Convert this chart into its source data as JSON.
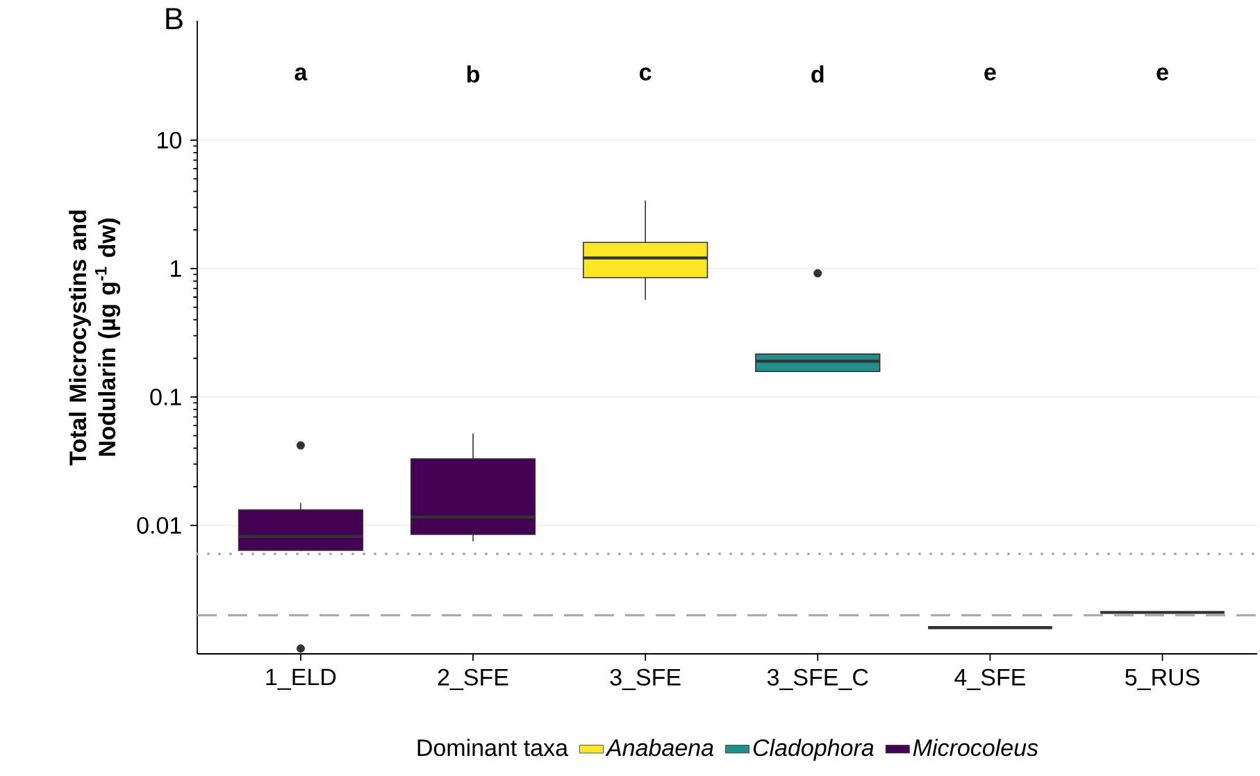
{
  "chart_data": {
    "type": "box",
    "ylabel": "Total Microcystins and Nodularin (µg g$^{-1}$ dw)",
    "legend_title": "Dominant taxa",
    "categories": [
      "1_ELD",
      "2_SFE",
      "3_SFE",
      "3_SFE_C",
      "4_SFE",
      "5_RUS"
    ],
    "log": "y",
    "ylim": [
      0.001,
      85
    ],
    "yticks": [
      0.01,
      0.1,
      1,
      10
    ],
    "grid": "y",
    "legend": "bottom",
    "series": [
      {
        "name": "Anabaena",
        "color": "#fde725",
        "boxes": [
          null,
          null,
          {
            "low": 0.57,
            "q1": 0.85,
            "median": 1.21,
            "q3": 1.6,
            "high": 3.4
          },
          null,
          null,
          null
        ]
      },
      {
        "name": "Cladophora",
        "color": "#21908c",
        "boxes": [
          null,
          null,
          null,
          {
            "low": 0.158,
            "q1": 0.158,
            "median": 0.19,
            "q3": 0.216,
            "high": 0.216,
            "outliers": [
              0.92
            ]
          },
          null,
          null
        ]
      },
      {
        "name": "Microcoleus",
        "color": "#440154",
        "boxes": [
          {
            "low": 0.0063,
            "q1": 0.0064,
            "median": 0.0082,
            "q3": 0.0132,
            "high": 0.015,
            "outliers": [
              0.042,
              0.0011
            ]
          },
          {
            "low": 0.0075,
            "q1": 0.0085,
            "median": 0.0116,
            "q3": 0.033,
            "high": 0.052
          },
          null,
          null,
          null,
          null
        ]
      },
      {
        "color": "#333333",
        "boxes": [
          null,
          null,
          null,
          null,
          {
            "low": 0.0016,
            "q1": 0.0016,
            "median": 0.0016,
            "q3": 0.0016,
            "high": 0.0016
          },
          {
            "low": 0.0021,
            "q1": 0.0021,
            "median": 0.0021,
            "q3": 0.0021,
            "high": 0.0021
          }
        ]
      }
    ],
    "ref_lines": [
      {
        "axis": "y",
        "value": 0.006,
        "color": "#aaaaaa",
        "line_style": "dotted"
      },
      {
        "axis": "y",
        "value": 0.002,
        "color": "#aaaaaa",
        "line_style": "dashed"
      }
    ],
    "annotations": [
      "B",
      "a",
      "b",
      "c",
      "d",
      "e",
      "e"
    ]
  }
}
